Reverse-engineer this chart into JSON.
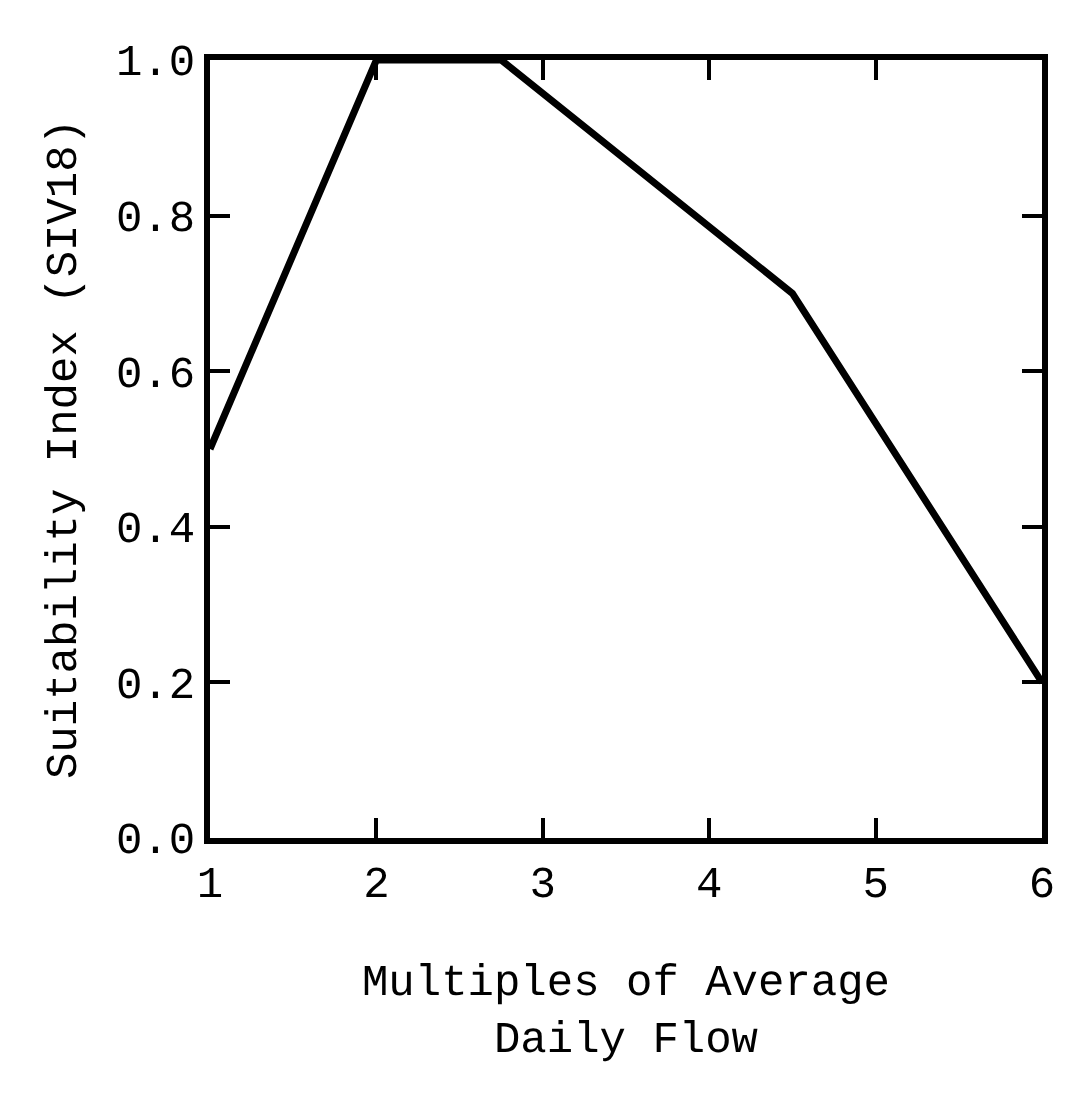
{
  "chart_data": {
    "type": "line",
    "xlabel": "Multiples of Average\nDaily Flow",
    "ylabel": "Suitability Index (SIV18)",
    "x": [
      1,
      2,
      2.75,
      4.5,
      6
    ],
    "series": [
      {
        "color": "#000000",
        "values": [
          0.5,
          1.0,
          1.0,
          0.7,
          0.2
        ]
      }
    ],
    "xlim": [
      1,
      6
    ],
    "xticks": [
      1,
      2,
      3,
      4,
      5,
      6
    ],
    "ylim": [
      0,
      1
    ],
    "yticks": [
      {
        "value": 0,
        "label": "0.0"
      },
      {
        "value": 0.2,
        "label": "0.2"
      },
      {
        "value": 0.4,
        "label": "0.4"
      },
      {
        "value": 0.6,
        "label": "0.6"
      },
      {
        "value": 0.8,
        "label": "0.8"
      },
      {
        "value": 1,
        "label": "1.0"
      }
    ],
    "marker": "none",
    "line_style": "solid"
  }
}
